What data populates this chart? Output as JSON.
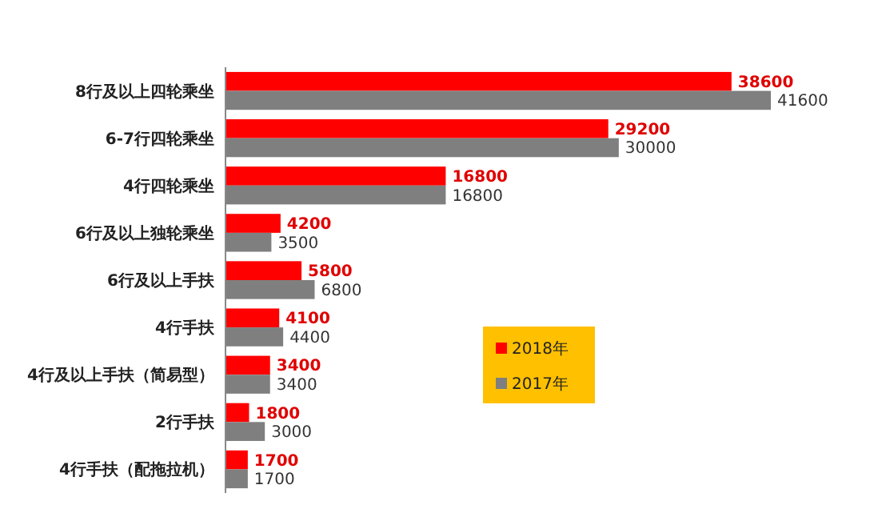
{
  "chart_data": {
    "type": "bar",
    "orientation": "horizontal",
    "categories": [
      "8行及以上四轮乘坐",
      "6-7行四轮乘坐",
      "4行四轮乘坐",
      "6行及以上独轮乘坐",
      "6行及以上手扶",
      "4行手扶",
      "4行及以上手扶（简易型）",
      "2行手扶",
      "4行手扶（配拖拉机）"
    ],
    "series": [
      {
        "name": "2018年",
        "color": "#ff0000",
        "values": [
          38600,
          29200,
          16800,
          4200,
          5800,
          4100,
          3400,
          1800,
          1700
        ]
      },
      {
        "name": "2017年",
        "color": "#7f7f7f",
        "values": [
          41600,
          30000,
          16800,
          3500,
          6800,
          4400,
          3400,
          3000,
          1700
        ]
      }
    ],
    "data_labels": true,
    "legend": "bottom right",
    "grid": false
  }
}
